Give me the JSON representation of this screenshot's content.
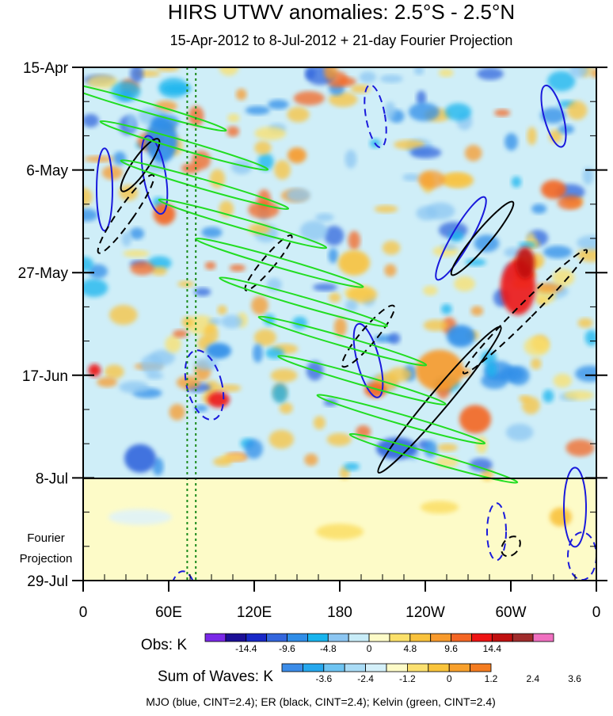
{
  "chart_data": {
    "type": "heatmap",
    "title": "HIRS UTWV anomalies: 2.5°S - 2.5°N",
    "subtitle": "15-Apr-2012 to 8-Jul-2012 + 21-day Fourier Projection",
    "x_ticks": [
      "0",
      "60E",
      "120E",
      "180",
      "120W",
      "60W",
      "0"
    ],
    "x_tick_values": [
      0,
      60,
      120,
      180,
      240,
      300,
      360
    ],
    "xlim": [
      0,
      360
    ],
    "y_ticks": [
      "15-Apr",
      "6-May",
      "27-May",
      "17-Jun",
      "8-Jul",
      "29-Jul"
    ],
    "y_tick_days": [
      0,
      21,
      42,
      63,
      84,
      105
    ],
    "ylim_days": [
      0,
      105
    ],
    "observation_end_label": "8-Jul",
    "fourier_label_lines": [
      "Fourier",
      "Projection"
    ],
    "marker_lines_lon": [
      73,
      79
    ],
    "colorbar_obs": {
      "label": "Obs: K",
      "colors": [
        "#7a28e8",
        "#1c0f96",
        "#1828c8",
        "#3366dd",
        "#2f8de8",
        "#18b4ee",
        "#8cc6f2",
        "#c8ecf8",
        "#fdfbc8",
        "#fbe06a",
        "#f9c23c",
        "#f89a2c",
        "#f46624",
        "#ee1414",
        "#c01010",
        "#a02c2c",
        "#f070c0"
      ],
      "ticks": [
        "-14.4",
        "-9.6",
        "-4.8",
        "0",
        "4.8",
        "9.6",
        "14.4"
      ]
    },
    "colorbar_waves": {
      "label": "Sum of Waves: K",
      "colors": [
        "#3c8ce8",
        "#26a8ee",
        "#6ec4f2",
        "#aadcf6",
        "#d4f0fa",
        "#fdfbc8",
        "#fbe070",
        "#f9c43c",
        "#f8a02c",
        "#f47c20"
      ],
      "ticks": [
        "-3.6",
        "-2.4",
        "-1.2",
        "0",
        "1.2",
        "2.4",
        "3.6"
      ]
    },
    "footnote": "MJO (blue, CINT=2.4); ER (black, CINT=2.4); Kelvin (green, CINT=2.4)",
    "contours": [
      {
        "wave": "MJO",
        "color": "#1a1adc"
      },
      {
        "wave": "ER",
        "color": "#000000"
      },
      {
        "wave": "Kelvin",
        "color": "#22dd22"
      }
    ]
  }
}
